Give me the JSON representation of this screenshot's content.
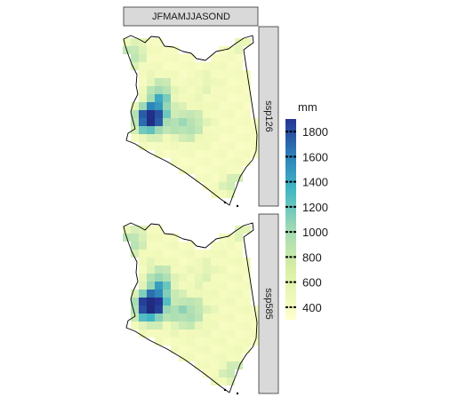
{
  "column_strip": "JFMAMJJASOND",
  "panels": [
    {
      "label": "ssp126"
    },
    {
      "label": "ssp585"
    }
  ],
  "legend": {
    "title": "mm",
    "ticks": [
      "1800",
      "1600",
      "1400",
      "1200",
      "1000",
      "800",
      "600",
      "400"
    ],
    "tick_values": [
      1800,
      1600,
      1400,
      1200,
      1000,
      800,
      600,
      400
    ],
    "range": [
      300,
      1900
    ],
    "colors": [
      "#ffffcc",
      "#d9f0a3",
      "#a1dab4",
      "#41b6c4",
      "#2c7fb8",
      "#253494"
    ]
  },
  "colors": {
    "strip_fill": "#d9d9d9",
    "strip_border": "#333333",
    "boundary": "#000000"
  }
}
